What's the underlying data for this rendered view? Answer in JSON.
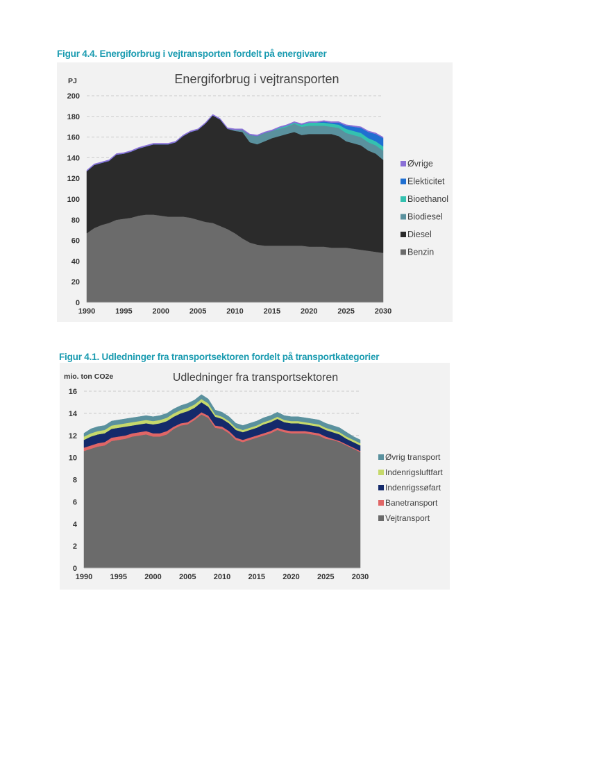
{
  "figures": [
    {
      "caption": "Figur 4.4. Energiforbrug i vejtransporten fordelt på energivarer",
      "chart_data": {
        "type": "area",
        "stacked": true,
        "title": "Energiforbrug i vejtransporten",
        "ylabel": "PJ",
        "xlabel": "",
        "ylim": [
          0,
          200
        ],
        "yticks": [
          0,
          20,
          40,
          60,
          80,
          100,
          120,
          140,
          160,
          180,
          200
        ],
        "xlim": [
          1990,
          2030
        ],
        "xticks": [
          1990,
          1995,
          2000,
          2005,
          2010,
          2015,
          2020,
          2025,
          2030
        ],
        "grid": "horizontal-dashed",
        "legend_position": "right",
        "x": [
          1990,
          1991,
          1992,
          1993,
          1994,
          1995,
          1996,
          1997,
          1998,
          1999,
          2000,
          2001,
          2002,
          2003,
          2004,
          2005,
          2006,
          2007,
          2008,
          2009,
          2010,
          2011,
          2012,
          2013,
          2014,
          2015,
          2016,
          2017,
          2018,
          2019,
          2020,
          2021,
          2022,
          2023,
          2024,
          2025,
          2026,
          2027,
          2028,
          2029,
          2030
        ],
        "series": [
          {
            "name": "Benzin",
            "color": "#6b6b6b",
            "values": [
              67,
              72,
              75,
              77,
              80,
              81,
              82,
              84,
              85,
              85,
              84,
              83,
              83,
              83,
              82,
              80,
              78,
              77,
              74,
              71,
              67,
              62,
              58,
              56,
              55,
              55,
              55,
              55,
              55,
              55,
              54,
              54,
              54,
              53,
              53,
              53,
              52,
              51,
              50,
              49,
              48
            ]
          },
          {
            "name": "Diesel",
            "color": "#2b2b2b",
            "values": [
              60,
              61,
              60,
              60,
              63,
              63,
              64,
              65,
              66,
              68,
              69,
              70,
              72,
              78,
              83,
              87,
              95,
              104,
              103,
              97,
              99,
              103,
              97,
              97,
              101,
              104,
              106,
              108,
              110,
              107,
              109,
              109,
              109,
              110,
              108,
              103,
              102,
              101,
              97,
              95,
              90
            ]
          },
          {
            "name": "Biodiesel",
            "color": "#5a919e",
            "values": [
              0,
              0,
              0,
              0,
              0,
              0,
              0,
              0,
              0,
              0,
              0,
              0,
              0,
              0,
              0,
              0,
              0,
              0,
              0,
              0,
              1,
              2,
              7,
              8,
              8,
              7,
              7,
              7,
              8,
              8,
              8,
              8,
              8,
              7,
              8,
              8,
              8,
              8,
              8,
              8,
              9
            ]
          },
          {
            "name": "Bioethanol",
            "color": "#34c1b0",
            "values": [
              0,
              0,
              0,
              0,
              0,
              0,
              0,
              0,
              0,
              0,
              0,
              0,
              0,
              0,
              0,
              0,
              0,
              0,
              0,
              0,
              0,
              0,
              0,
              0,
              0,
              0,
              1,
              1,
              1,
              2,
              3,
              3,
              3,
              3,
              3,
              4,
              4,
              4,
              4,
              4,
              4
            ]
          },
          {
            "name": "Elekticitet",
            "color": "#1f6fd1",
            "values": [
              0,
              0,
              0,
              0,
              0,
              0,
              0,
              0,
              0,
              0,
              0,
              0,
              0,
              0,
              0,
              0,
              0,
              0,
              0,
              0,
              0,
              0,
              0,
              0,
              0,
              0,
              0,
              0,
              0,
              0,
              0,
              0,
              1,
              1,
              2,
              3,
              4,
              5,
              6,
              7,
              8
            ]
          },
          {
            "name": "Øvrige",
            "color": "#8a70d6",
            "values": [
              1,
              1,
              1,
              1,
              1,
              1,
              1,
              1,
              1,
              1,
              1,
              1,
              1,
              1,
              1,
              1,
              1,
              1,
              1,
              1,
              1,
              1,
              1,
              1,
              1,
              1,
              1,
              1,
              1,
              1,
              1,
              1,
              1,
              1,
              1,
              1,
              1,
              1,
              1,
              1,
              1
            ]
          }
        ]
      }
    },
    {
      "caption": "Figur 4.1. Udledninger fra transportsektoren fordelt på transportkategorier",
      "chart_data": {
        "type": "area",
        "stacked": true,
        "title": "Udledninger fra transportsektoren",
        "ylabel": "mio. ton CO2e",
        "xlabel": "",
        "ylim": [
          0,
          16
        ],
        "yticks": [
          0,
          2,
          4,
          6,
          8,
          10,
          12,
          14,
          16
        ],
        "xlim": [
          1990,
          2030
        ],
        "xticks": [
          1990,
          1995,
          2000,
          2005,
          2010,
          2015,
          2020,
          2025,
          2030
        ],
        "grid": "horizontal-dashed",
        "legend_position": "right",
        "x": [
          1990,
          1991,
          1992,
          1993,
          1994,
          1995,
          1996,
          1997,
          1998,
          1999,
          2000,
          2001,
          2002,
          2003,
          2004,
          2005,
          2006,
          2007,
          2008,
          2009,
          2010,
          2011,
          2012,
          2013,
          2014,
          2015,
          2016,
          2017,
          2018,
          2019,
          2020,
          2021,
          2022,
          2023,
          2024,
          2025,
          2026,
          2027,
          2028,
          2029,
          2030
        ],
        "series": [
          {
            "name": "Vejtransport",
            "color": "#6b6b6b",
            "values": [
              10.6,
              10.8,
              11.0,
              11.1,
              11.5,
              11.6,
              11.7,
              11.9,
              12.0,
              12.1,
              11.9,
              11.9,
              12.1,
              12.6,
              12.9,
              13.0,
              13.4,
              13.9,
              13.6,
              12.7,
              12.6,
              12.2,
              11.6,
              11.4,
              11.6,
              11.8,
              12.0,
              12.2,
              12.5,
              12.3,
              12.2,
              12.2,
              12.2,
              12.1,
              12.0,
              11.7,
              11.6,
              11.4,
              11.1,
              10.8,
              10.5
            ]
          },
          {
            "name": "Banetransport",
            "color": "#e06666",
            "values": [
              0.3,
              0.3,
              0.3,
              0.3,
              0.3,
              0.3,
              0.3,
              0.3,
              0.3,
              0.3,
              0.3,
              0.3,
              0.3,
              0.2,
              0.2,
              0.2,
              0.2,
              0.2,
              0.2,
              0.2,
              0.2,
              0.2,
              0.2,
              0.2,
              0.2,
              0.2,
              0.2,
              0.2,
              0.2,
              0.2,
              0.2,
              0.2,
              0.2,
              0.2,
              0.2,
              0.2,
              0.1,
              0.1,
              0.1,
              0.1,
              0.1
            ]
          },
          {
            "name": "Indenrigssøfart",
            "color": "#142a6b",
            "values": [
              0.7,
              0.8,
              0.8,
              0.8,
              0.8,
              0.8,
              0.8,
              0.7,
              0.7,
              0.7,
              0.8,
              0.9,
              0.9,
              0.9,
              0.9,
              1.0,
              0.9,
              0.9,
              0.8,
              0.8,
              0.7,
              0.7,
              0.7,
              0.7,
              0.7,
              0.7,
              0.8,
              0.8,
              0.8,
              0.7,
              0.7,
              0.7,
              0.6,
              0.6,
              0.6,
              0.6,
              0.6,
              0.6,
              0.5,
              0.5,
              0.5
            ]
          },
          {
            "name": "Indenrigsluftfart",
            "color": "#c6d96b",
            "values": [
              0.3,
              0.3,
              0.3,
              0.3,
              0.3,
              0.3,
              0.3,
              0.3,
              0.3,
              0.3,
              0.3,
              0.3,
              0.3,
              0.3,
              0.3,
              0.3,
              0.3,
              0.3,
              0.3,
              0.2,
              0.2,
              0.2,
              0.2,
              0.2,
              0.2,
              0.2,
              0.2,
              0.2,
              0.2,
              0.2,
              0.2,
              0.2,
              0.2,
              0.2,
              0.2,
              0.2,
              0.2,
              0.2,
              0.2,
              0.2,
              0.2
            ]
          },
          {
            "name": "Øvrig transport",
            "color": "#5a919e",
            "values": [
              0.3,
              0.4,
              0.4,
              0.4,
              0.4,
              0.4,
              0.4,
              0.4,
              0.4,
              0.4,
              0.4,
              0.4,
              0.4,
              0.4,
              0.4,
              0.4,
              0.4,
              0.4,
              0.4,
              0.4,
              0.4,
              0.4,
              0.4,
              0.4,
              0.4,
              0.4,
              0.4,
              0.4,
              0.4,
              0.4,
              0.4,
              0.4,
              0.4,
              0.4,
              0.4,
              0.4,
              0.4,
              0.4,
              0.4,
              0.3,
              0.3
            ]
          }
        ]
      }
    }
  ]
}
